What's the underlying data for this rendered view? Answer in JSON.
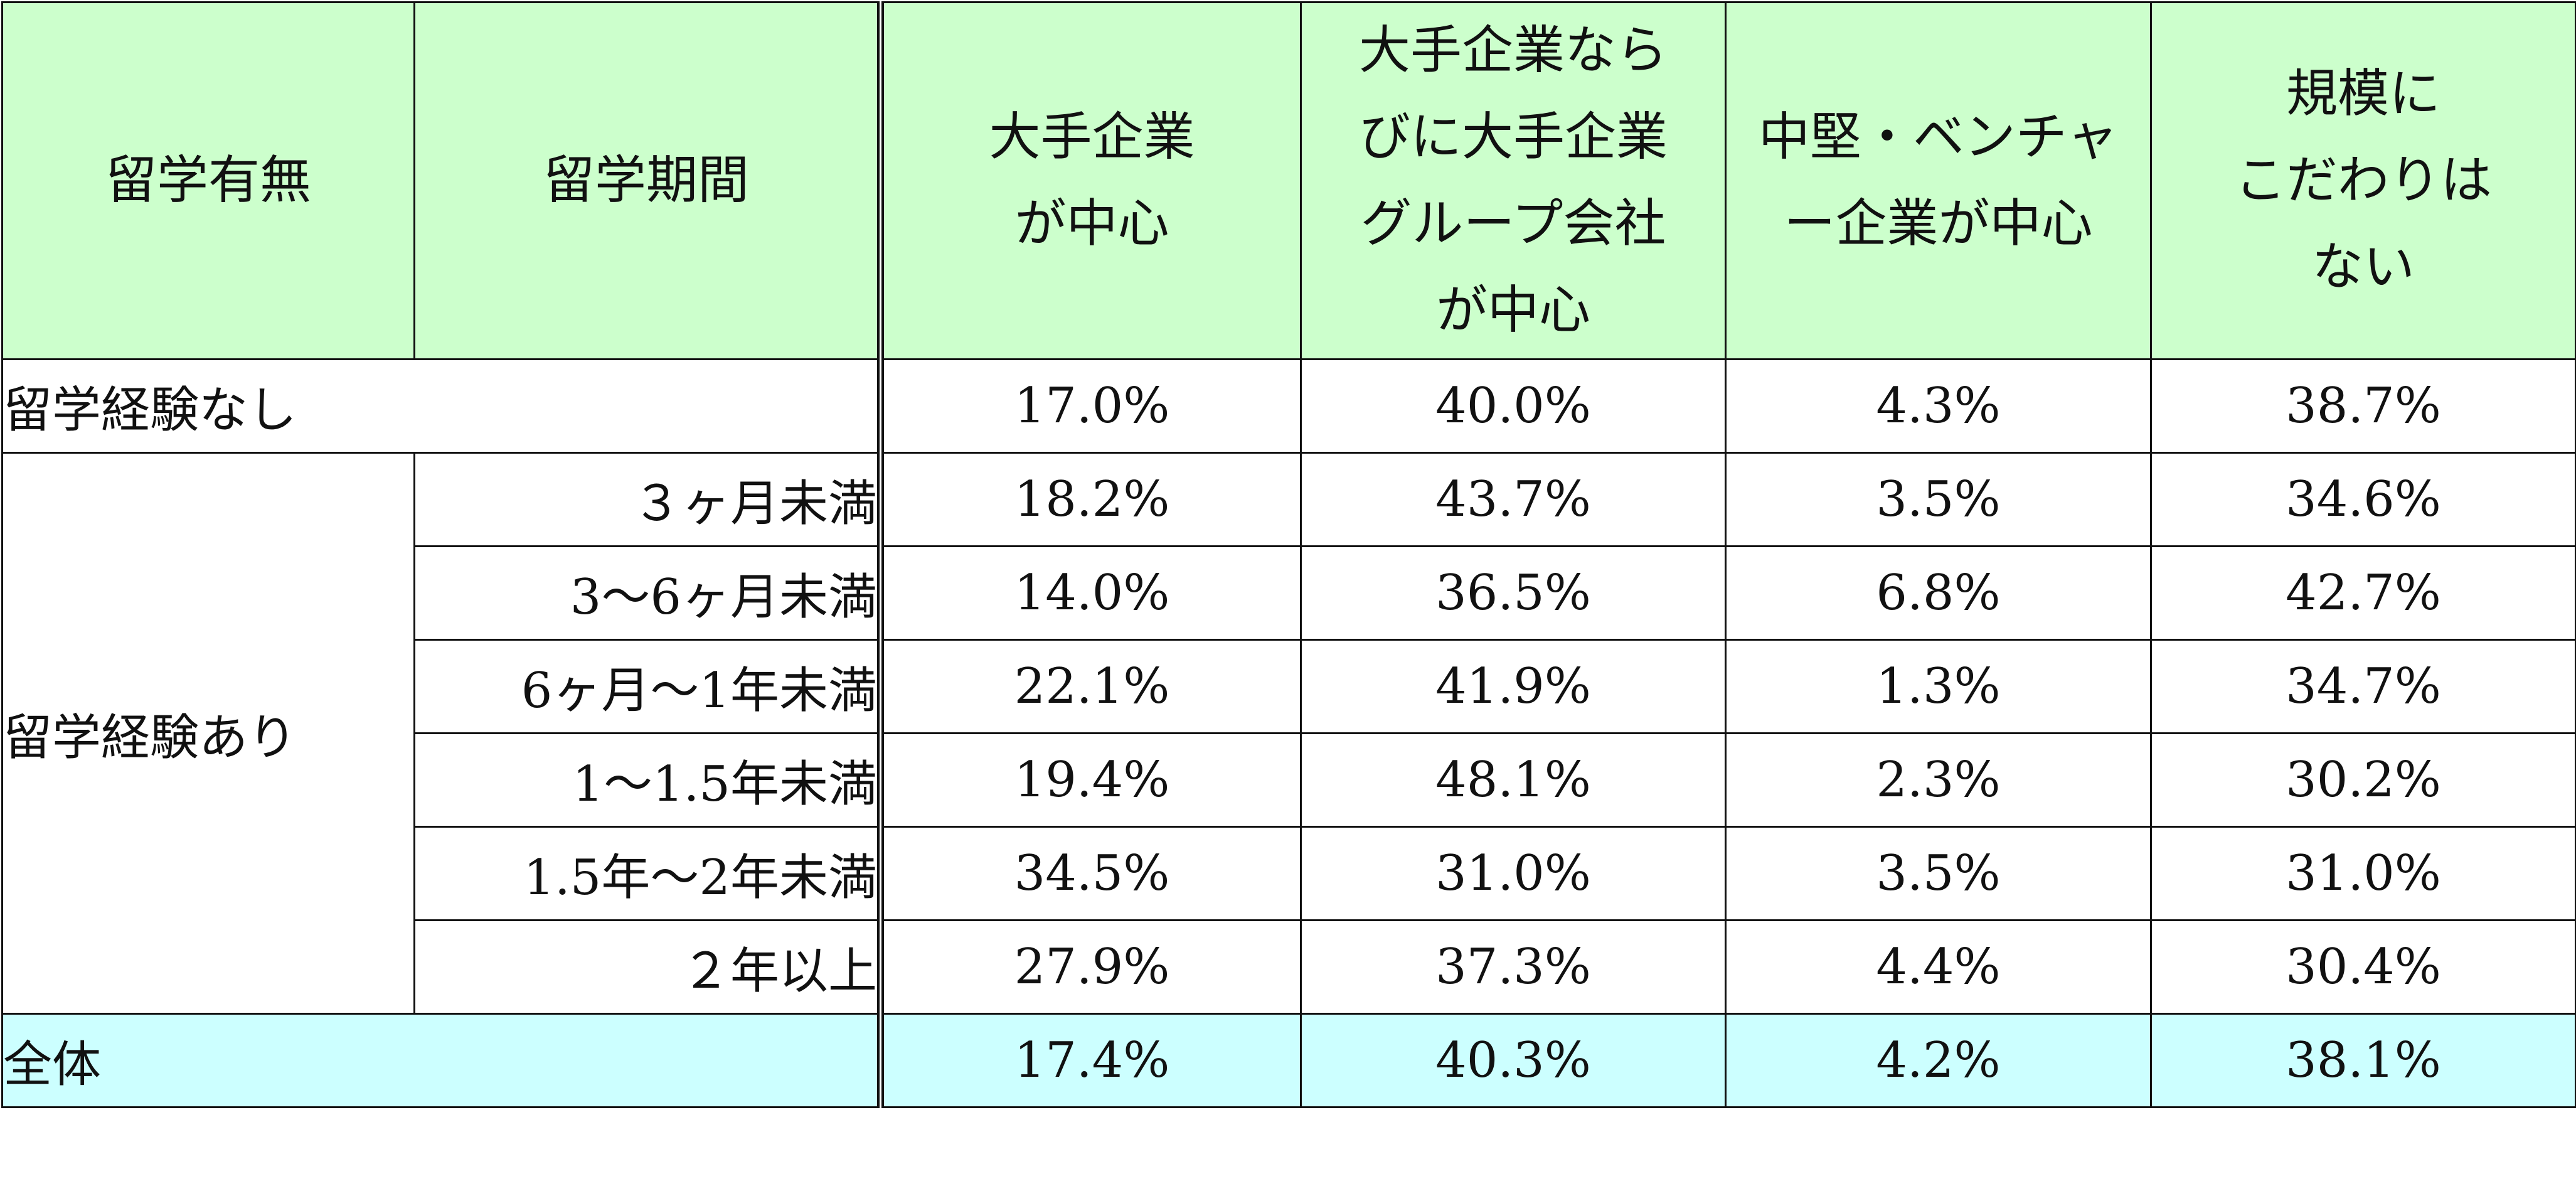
{
  "table": {
    "headers": {
      "study_abroad": "留学有無",
      "period": "留学期間",
      "col1": [
        "大手企業",
        "が中心"
      ],
      "col2": [
        "大手企業なら",
        "びに大手企業",
        "グループ会社",
        "が中心"
      ],
      "col3": [
        "中堅・ベンチャ",
        "ー企業が中心"
      ],
      "col4": [
        "規模に",
        "こだわりは",
        "ない"
      ]
    },
    "no_experience": {
      "label": "留学経験なし",
      "values": [
        "17.0%",
        "40.0%",
        "4.3%",
        "38.7%"
      ]
    },
    "with_experience": {
      "label": "留学経験あり",
      "rows": [
        {
          "period": "３ヶ月未満",
          "values": [
            "18.2%",
            "43.7%",
            "3.5%",
            "34.6%"
          ]
        },
        {
          "period": "3〜6ヶ月未満",
          "values": [
            "14.0%",
            "36.5%",
            "6.8%",
            "42.7%"
          ]
        },
        {
          "period": "6ヶ月〜1年未満",
          "values": [
            "22.1%",
            "41.9%",
            "1.3%",
            "34.7%"
          ]
        },
        {
          "period": "1〜1.5年未満",
          "values": [
            "19.4%",
            "48.1%",
            "2.3%",
            "30.2%"
          ]
        },
        {
          "period": "1.5年〜2年未満",
          "values": [
            "34.5%",
            "31.0%",
            "3.5%",
            "31.0%"
          ]
        },
        {
          "period": "２年以上",
          "values": [
            "27.9%",
            "37.3%",
            "4.4%",
            "30.4%"
          ]
        }
      ]
    },
    "total": {
      "label": "全体",
      "values": [
        "17.4%",
        "40.3%",
        "4.2%",
        "38.1%"
      ]
    },
    "colors": {
      "header_bg": "#ccffcc",
      "total_bg": "#ccffff"
    }
  }
}
